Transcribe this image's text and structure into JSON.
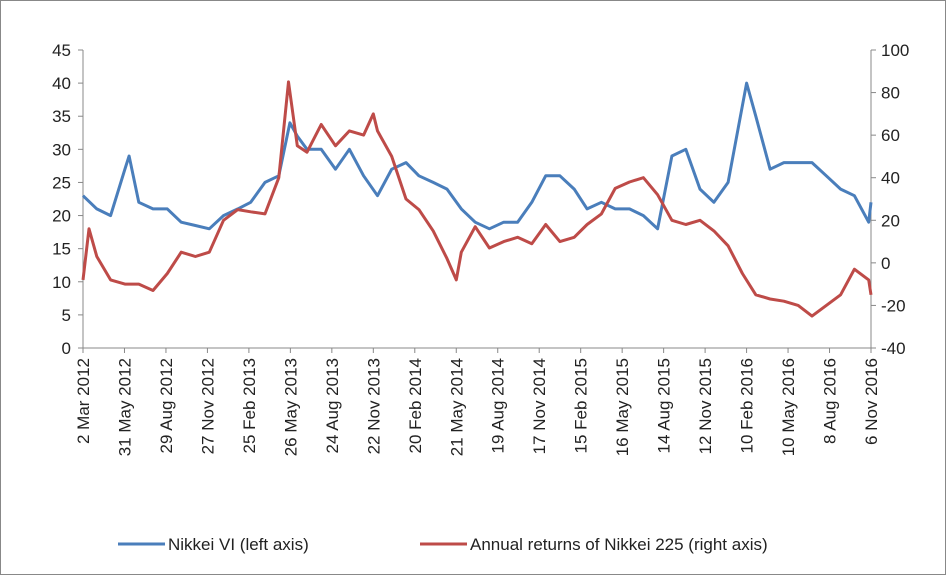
{
  "chart_data": {
    "type": "line",
    "xlim": [
      "2012-03-02",
      "2016-11-06"
    ],
    "xticks": [
      {
        "value": "2012-03-02",
        "label": "2 Mar 2012"
      },
      {
        "value": "2012-05-31",
        "label": "31 May 2012"
      },
      {
        "value": "2012-08-29",
        "label": "29 Aug 2012"
      },
      {
        "value": "2012-11-27",
        "label": "27 Nov 2012"
      },
      {
        "value": "2013-02-25",
        "label": "25 Feb 2013"
      },
      {
        "value": "2013-05-26",
        "label": "26 May 2013"
      },
      {
        "value": "2013-08-24",
        "label": "24 Aug 2013"
      },
      {
        "value": "2013-11-22",
        "label": "22 Nov 2013"
      },
      {
        "value": "2014-02-20",
        "label": "20 Feb 2014"
      },
      {
        "value": "2014-05-21",
        "label": "21 May 2014"
      },
      {
        "value": "2014-08-19",
        "label": "19 Aug 2014"
      },
      {
        "value": "2014-11-17",
        "label": "17 Nov 2014"
      },
      {
        "value": "2015-02-15",
        "label": "15 Feb 2015"
      },
      {
        "value": "2015-05-16",
        "label": "16 May 2015"
      },
      {
        "value": "2015-08-14",
        "label": "14 Aug 2015"
      },
      {
        "value": "2015-11-12",
        "label": "12 Nov 2015"
      },
      {
        "value": "2016-02-10",
        "label": "10 Feb 2016"
      },
      {
        "value": "2016-05-10",
        "label": "10 May 2016"
      },
      {
        "value": "2016-08-08",
        "label": "8 Aug 2016"
      },
      {
        "value": "2016-11-06",
        "label": "6 Nov 2016"
      }
    ],
    "ylim": [
      0,
      45
    ],
    "yticks": [
      0,
      5,
      10,
      15,
      20,
      25,
      30,
      35,
      40,
      45
    ],
    "y2lim": [
      -40,
      100
    ],
    "y2ticks": [
      -40,
      -20,
      0,
      20,
      40,
      60,
      80,
      100
    ],
    "series": [
      {
        "name": "Nikkei VI (left axis)",
        "color": "#4a7ebb",
        "x": [
          "2012-03-02",
          "2012-04-01",
          "2012-05-01",
          "2012-06-01",
          "2012-06-10",
          "2012-07-01",
          "2012-08-01",
          "2012-09-01",
          "2012-10-01",
          "2012-11-01",
          "2012-12-01",
          "2013-01-01",
          "2013-02-01",
          "2013-03-01",
          "2013-04-01",
          "2013-05-01",
          "2013-05-25",
          "2013-06-10",
          "2013-07-01",
          "2013-08-01",
          "2013-09-01",
          "2013-10-01",
          "2013-11-01",
          "2013-12-01",
          "2014-01-01",
          "2014-02-01",
          "2014-03-01",
          "2014-04-01",
          "2014-05-01",
          "2014-06-01",
          "2014-07-01",
          "2014-08-01",
          "2014-09-01",
          "2014-10-01",
          "2014-11-01",
          "2014-12-01",
          "2015-01-01",
          "2015-02-01",
          "2015-03-01",
          "2015-04-01",
          "2015-05-01",
          "2015-06-01",
          "2015-07-01",
          "2015-08-01",
          "2015-09-01",
          "2015-10-01",
          "2015-11-01",
          "2015-12-01",
          "2016-01-01",
          "2016-02-10",
          "2016-03-01",
          "2016-04-01",
          "2016-05-01",
          "2016-06-01",
          "2016-07-01",
          "2016-08-01",
          "2016-09-01",
          "2016-10-01",
          "2016-11-01",
          "2016-11-06"
        ],
        "values": [
          23,
          21,
          20,
          27,
          29,
          22,
          21,
          21,
          19,
          18.5,
          18,
          20,
          21,
          22,
          25,
          26,
          34,
          32,
          30,
          30,
          27,
          30,
          26,
          23,
          27,
          28,
          26,
          25,
          24,
          21,
          19,
          18,
          19,
          19,
          22,
          26,
          26,
          24,
          21,
          22,
          21,
          21,
          20,
          18,
          29,
          30,
          24,
          22,
          25,
          40,
          35,
          27,
          28,
          28,
          28,
          26,
          24,
          23,
          19,
          22
        ]
      },
      {
        "name": "Annual returns of Nikkei 225 (right axis)",
        "color": "#be4b48",
        "axis": "y2",
        "x": [
          "2012-03-02",
          "2012-03-15",
          "2012-04-01",
          "2012-05-01",
          "2012-06-01",
          "2012-07-01",
          "2012-08-01",
          "2012-09-01",
          "2012-10-01",
          "2012-11-01",
          "2012-12-01",
          "2013-01-01",
          "2013-02-01",
          "2013-03-01",
          "2013-04-01",
          "2013-05-01",
          "2013-05-22",
          "2013-06-10",
          "2013-07-01",
          "2013-08-01",
          "2013-09-01",
          "2013-10-01",
          "2013-11-01",
          "2013-11-22",
          "2013-12-01",
          "2014-01-01",
          "2014-02-01",
          "2014-03-01",
          "2014-04-01",
          "2014-05-01",
          "2014-05-21",
          "2014-06-01",
          "2014-07-01",
          "2014-08-01",
          "2014-09-01",
          "2014-10-01",
          "2014-11-01",
          "2014-12-01",
          "2015-01-01",
          "2015-02-01",
          "2015-03-01",
          "2015-04-01",
          "2015-05-01",
          "2015-06-01",
          "2015-07-01",
          "2015-08-01",
          "2015-09-01",
          "2015-10-01",
          "2015-11-01",
          "2015-12-01",
          "2016-01-01",
          "2016-02-01",
          "2016-03-01",
          "2016-04-01",
          "2016-05-01",
          "2016-06-01",
          "2016-07-01",
          "2016-08-01",
          "2016-09-01",
          "2016-10-01",
          "2016-11-01",
          "2016-11-06"
        ],
        "values": [
          -8,
          16,
          3,
          -8,
          -10,
          -10,
          -13,
          -5,
          5,
          3,
          5,
          20,
          25,
          24,
          23,
          40,
          85,
          55,
          52,
          65,
          55,
          62,
          60,
          70,
          62,
          50,
          30,
          25,
          15,
          2,
          -8,
          5,
          17,
          7,
          10,
          12,
          9,
          18,
          10,
          12,
          18,
          23,
          35,
          38,
          40,
          32,
          20,
          18,
          20,
          15,
          8,
          -5,
          -15,
          -17,
          -18,
          -20,
          -25,
          -20,
          -15,
          -3,
          -8,
          -15
        ]
      }
    ]
  }
}
